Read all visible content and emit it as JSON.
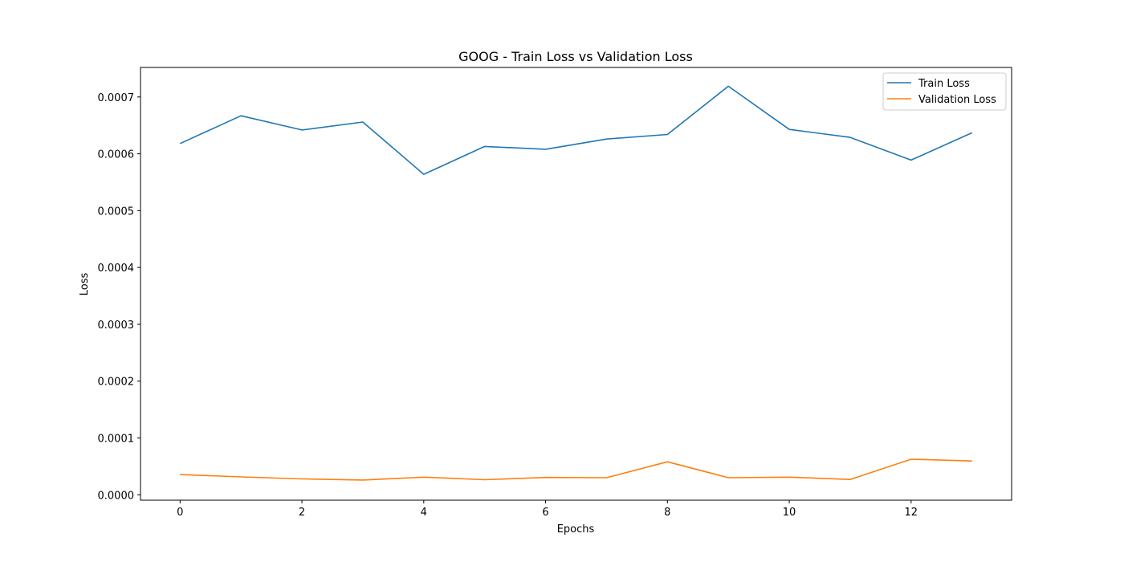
{
  "chart_data": {
    "type": "line",
    "title": "GOOG - Train Loss vs Validation Loss",
    "xlabel": "Epochs",
    "ylabel": "Loss",
    "x": [
      0,
      1,
      2,
      3,
      4,
      5,
      6,
      7,
      8,
      9,
      10,
      11,
      12,
      13
    ],
    "xticks": [
      0,
      2,
      4,
      6,
      8,
      10,
      12
    ],
    "xtick_labels": [
      "0",
      "2",
      "4",
      "6",
      "8",
      "10",
      "12"
    ],
    "yticks": [
      0,
      0.0001,
      0.0002,
      0.0003,
      0.0004,
      0.0005,
      0.0006,
      0.0007
    ],
    "ytick_labels": [
      "0.0000",
      "0.0001",
      "0.0002",
      "0.0003",
      "0.0004",
      "0.0005",
      "0.0006",
      "0.0007"
    ],
    "xlim": [
      -0.65,
      13.65
    ],
    "ylim": [
      -9.5e-06,
      0.000752
    ],
    "grid": false,
    "legend_position": "top-right",
    "series": [
      {
        "name": "Train Loss",
        "color": "#1f77b4",
        "values": [
          0.000618,
          0.000667,
          0.000642,
          0.000656,
          0.000564,
          0.000613,
          0.000608,
          0.000626,
          0.000634,
          0.000719,
          0.000643,
          0.000629,
          0.000589,
          0.000637
        ]
      },
      {
        "name": "Validation Loss",
        "color": "#ff7f0e",
        "values": [
          3.55e-05,
          3.15e-05,
          2.8e-05,
          2.6e-05,
          3.1e-05,
          2.65e-05,
          3.05e-05,
          3e-05,
          5.8e-05,
          3e-05,
          3.1e-05,
          2.7e-05,
          6.25e-05,
          5.95e-05
        ]
      }
    ]
  }
}
